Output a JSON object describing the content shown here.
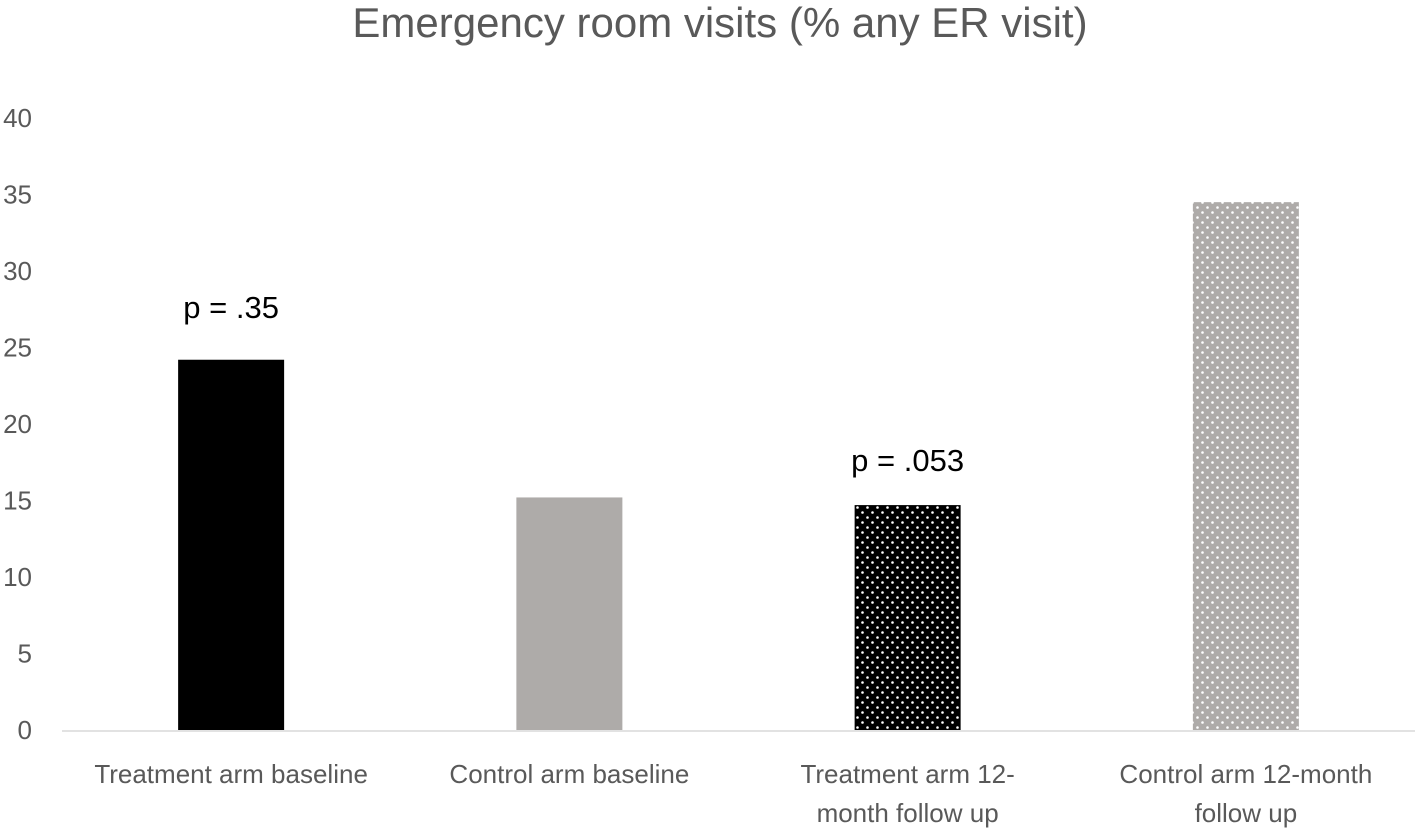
{
  "chart_data": {
    "type": "bar",
    "title": "Emergency room visits (% any ER visit)",
    "xlabel": "",
    "ylabel": "",
    "ylim": [
      0,
      40
    ],
    "yticks": [
      0,
      5,
      10,
      15,
      20,
      25,
      30,
      35,
      40
    ],
    "grid": false,
    "categories": [
      [
        "Treatment arm baseline"
      ],
      [
        "Control arm baseline"
      ],
      [
        "Treatment arm 12-",
        "month follow up"
      ],
      [
        "Control arm 12-month",
        "follow up"
      ]
    ],
    "values": [
      24.2,
      15.2,
      14.7,
      34.5
    ],
    "bar_styles": [
      {
        "fill": "#000000",
        "pattern": "solid"
      },
      {
        "fill": "#aeaba9",
        "pattern": "solid"
      },
      {
        "fill": "#000000",
        "pattern": "dots",
        "dot_color": "#ffffff"
      },
      {
        "fill": "#aeaba9",
        "pattern": "dots",
        "dot_color": "#ffffff"
      }
    ],
    "annotations": [
      {
        "text": "p = .35",
        "category_index": 0,
        "y": 27.7
      },
      {
        "text": "p = .053",
        "category_index": 2,
        "y": 17.7
      }
    ],
    "colors": {
      "axis_text": "#595959",
      "title": "#595959",
      "axis_line": "#d9d9d9",
      "annotation": "#000000"
    }
  }
}
